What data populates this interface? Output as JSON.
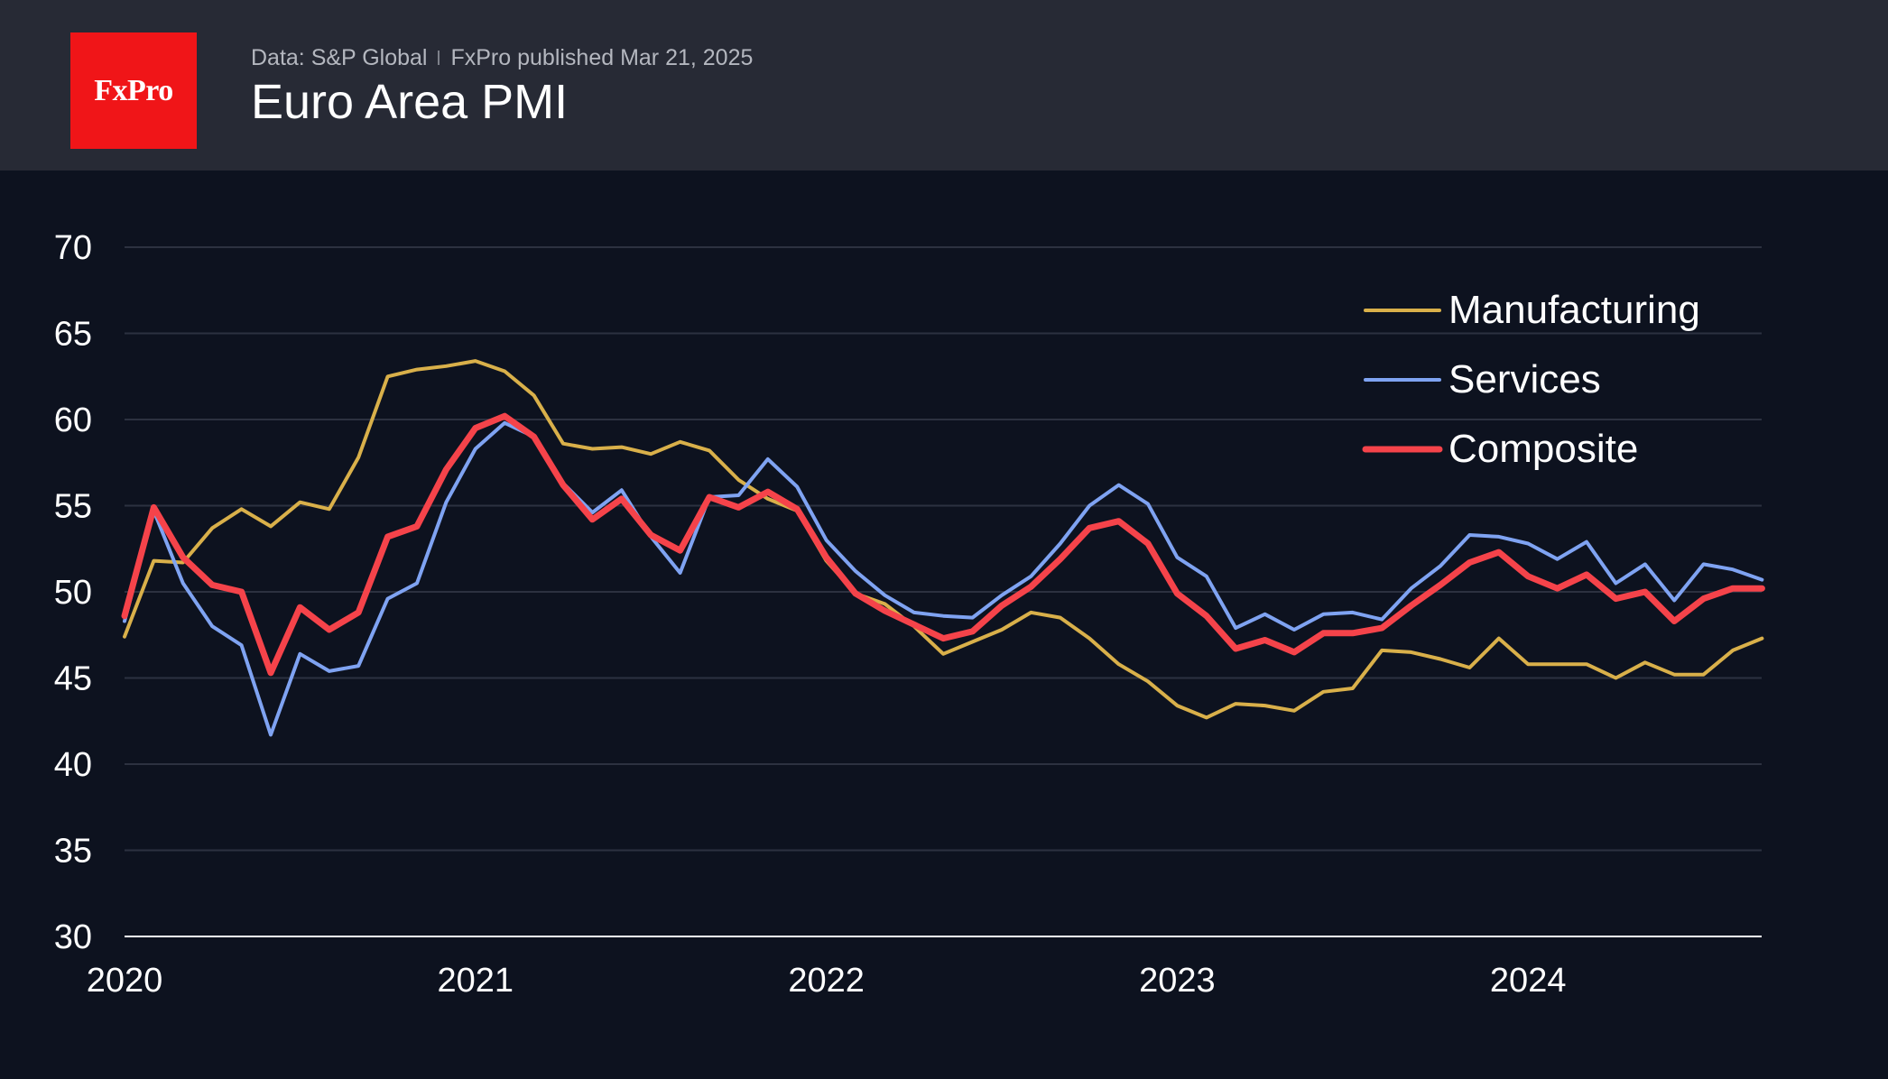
{
  "header": {
    "logo_text": "FxPro",
    "source": "Data: S&P Global",
    "published": "FxPro published Mar 21, 2025",
    "title": "Euro Area PMI"
  },
  "chart_data": {
    "type": "line",
    "title": "Euro Area PMI",
    "xlabel": "",
    "ylabel": "",
    "ylim": [
      30,
      70
    ],
    "yticks": [
      30,
      35,
      40,
      45,
      50,
      55,
      60,
      65,
      70
    ],
    "xlim": [
      "2020-01",
      "2024-09"
    ],
    "xticks": [
      "2020",
      "2021",
      "2022",
      "2023",
      "2024"
    ],
    "grid": true,
    "legend_position": "top-right",
    "x": [
      "2020-01",
      "2020-02",
      "2020-03",
      "2020-04",
      "2020-05",
      "2020-06",
      "2020-07",
      "2020-08",
      "2020-09",
      "2020-10",
      "2020-11",
      "2020-12",
      "2021-01",
      "2021-02",
      "2021-03",
      "2021-04",
      "2021-05",
      "2021-06",
      "2021-07",
      "2021-08",
      "2021-09",
      "2021-10",
      "2021-11",
      "2021-12",
      "2022-01",
      "2022-02",
      "2022-03",
      "2022-04",
      "2022-05",
      "2022-06",
      "2022-07",
      "2022-08",
      "2022-09",
      "2022-10",
      "2022-11",
      "2022-12",
      "2023-01",
      "2023-02",
      "2023-03",
      "2023-04",
      "2023-05",
      "2023-06",
      "2023-07",
      "2023-08",
      "2023-09",
      "2023-10",
      "2023-11",
      "2023-12",
      "2024-01",
      "2024-02",
      "2024-03",
      "2024-04",
      "2024-05",
      "2024-06",
      "2024-07",
      "2024-08",
      "2024-09"
    ],
    "series": [
      {
        "name": "Manufacturing",
        "color": "#d9b04a",
        "width": 4,
        "values": [
          47.4,
          51.8,
          51.7,
          53.7,
          54.8,
          53.8,
          55.2,
          54.8,
          57.8,
          62.5,
          62.9,
          63.1,
          63.4,
          62.8,
          61.4,
          58.6,
          58.3,
          58.4,
          58.0,
          58.7,
          58.2,
          56.5,
          55.4,
          54.7,
          51.8,
          49.9,
          49.3,
          48.0,
          46.4,
          47.1,
          47.8,
          48.8,
          48.5,
          47.3,
          45.8,
          44.8,
          43.4,
          42.7,
          43.5,
          43.4,
          43.1,
          44.2,
          44.4,
          46.6,
          46.5,
          46.1,
          45.6,
          47.3,
          45.8,
          45.8,
          45.8,
          45.0,
          45.9,
          45.2,
          45.2,
          46.6,
          47.3
        ]
      },
      {
        "name": "Services",
        "color": "#7fa3f2",
        "width": 4,
        "values": [
          48.3,
          54.7,
          50.5,
          48.0,
          46.9,
          41.7,
          46.4,
          45.4,
          45.7,
          49.6,
          50.5,
          55.2,
          58.3,
          59.8,
          59.0,
          56.3,
          54.6,
          55.9,
          53.2,
          51.1,
          55.5,
          55.6,
          57.7,
          56.1,
          53.0,
          51.2,
          49.8,
          48.8,
          48.6,
          48.5,
          49.8,
          50.9,
          52.8,
          55.0,
          56.2,
          55.1,
          52.0,
          50.9,
          47.9,
          48.7,
          47.8,
          48.7,
          48.8,
          48.4,
          50.2,
          51.5,
          53.3,
          53.2,
          52.8,
          51.9,
          52.9,
          50.5,
          51.6,
          49.5,
          51.6,
          51.3,
          50.7
        ]
      },
      {
        "name": "Composite",
        "color": "#f5434a",
        "width": 7,
        "values": [
          48.6,
          54.9,
          52.0,
          50.4,
          50.0,
          45.3,
          49.1,
          47.8,
          48.8,
          53.2,
          53.8,
          57.1,
          59.5,
          60.2,
          59.0,
          56.2,
          54.2,
          55.4,
          53.3,
          52.4,
          55.5,
          54.9,
          55.8,
          54.8,
          52.0,
          49.9,
          48.9,
          48.1,
          47.3,
          47.7,
          49.2,
          50.3,
          51.9,
          53.7,
          54.1,
          52.8,
          49.9,
          48.6,
          46.7,
          47.2,
          46.5,
          47.6,
          47.6,
          47.9,
          49.2,
          50.4,
          51.7,
          52.3,
          50.9,
          50.2,
          51.0,
          49.6,
          50.0,
          48.3,
          49.6,
          50.2,
          50.2
        ]
      }
    ]
  }
}
